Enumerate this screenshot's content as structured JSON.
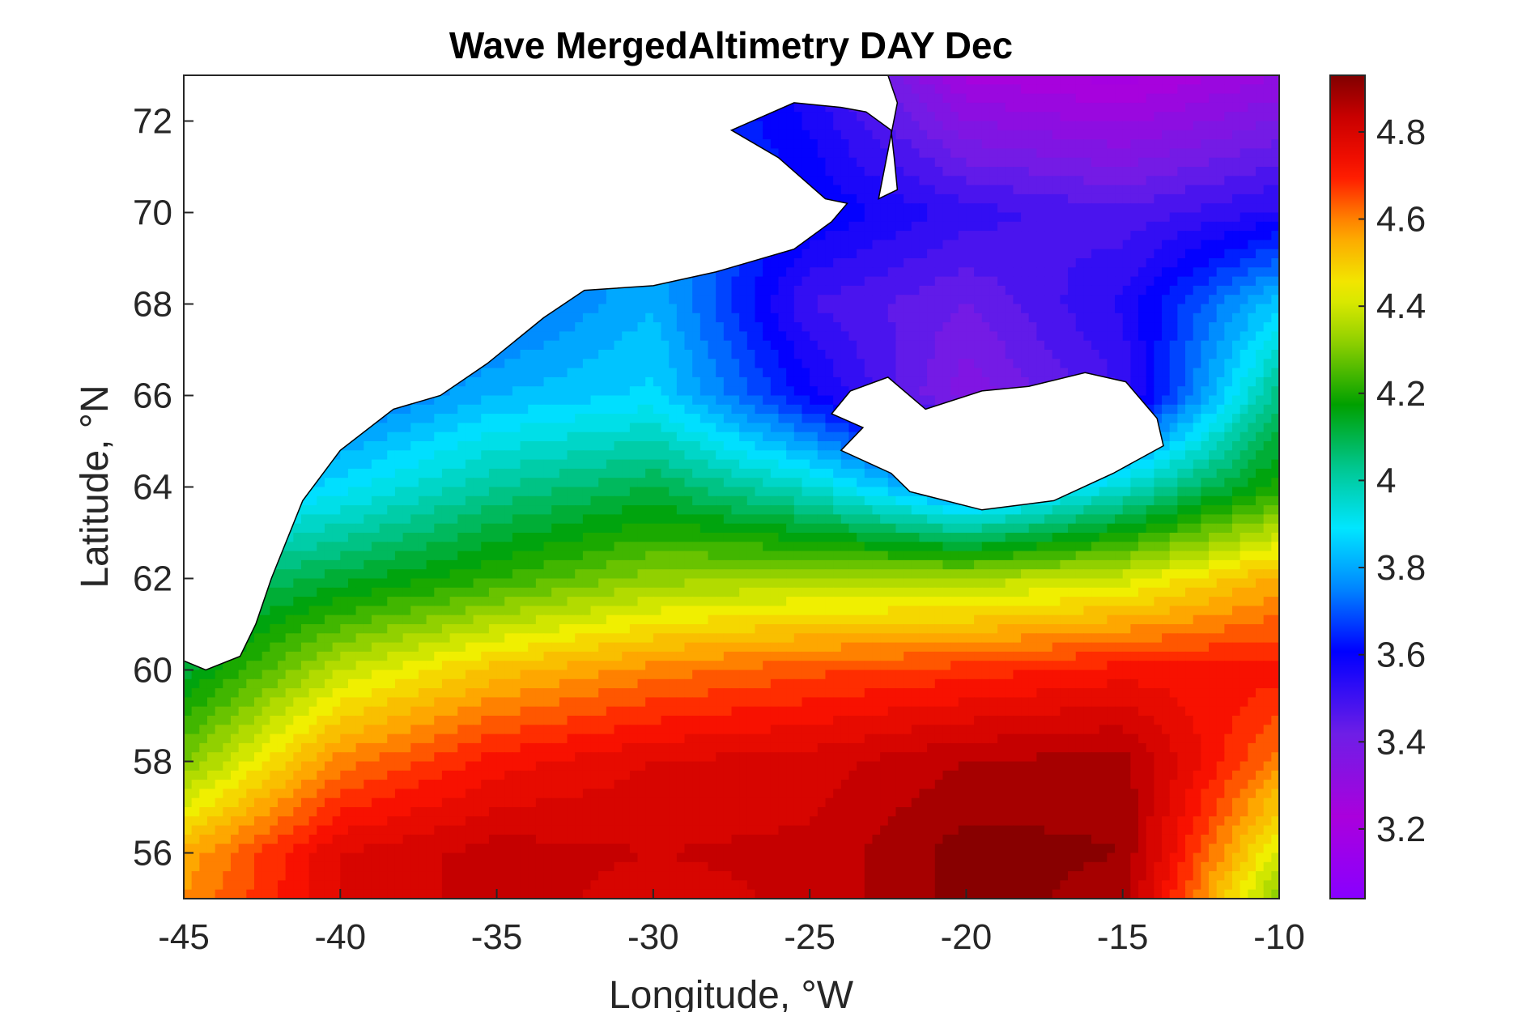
{
  "chart_data": {
    "type": "heatmap",
    "title": "Wave MergedAltimetry DAY Dec",
    "xlabel": "Longitude, °W",
    "ylabel": "Latitude, °N",
    "xlim": [
      -45,
      -10
    ],
    "ylim": [
      55,
      73
    ],
    "xticks": [
      -45,
      -40,
      -35,
      -30,
      -25,
      -20,
      -15,
      -10
    ],
    "yticks": [
      56,
      58,
      60,
      62,
      64,
      66,
      68,
      70,
      72
    ],
    "colorbar": {
      "range": [
        3.04,
        4.93
      ],
      "ticks": [
        3.2,
        3.4,
        3.6,
        3.8,
        4,
        4.2,
        4.4,
        4.6,
        4.8
      ],
      "colormap": "rainbow"
    },
    "grid": false,
    "contour_field": {
      "description_units": "wave height",
      "lon": [
        -45,
        -40,
        -35,
        -30,
        -25,
        -20,
        -15,
        -10
      ],
      "lat": [
        73,
        70,
        68,
        66,
        64,
        62,
        60,
        58,
        56,
        55
      ],
      "values": [
        [
          3.7,
          3.7,
          3.75,
          3.7,
          3.55,
          3.25,
          3.2,
          3.3
        ],
        [
          3.65,
          3.65,
          3.72,
          3.75,
          3.62,
          3.52,
          3.47,
          3.55
        ],
        [
          3.6,
          3.62,
          3.7,
          3.82,
          3.5,
          3.42,
          3.55,
          3.85
        ],
        [
          3.62,
          3.7,
          3.82,
          3.87,
          3.6,
          3.35,
          3.5,
          4.05
        ],
        [
          3.78,
          3.88,
          4.02,
          4.1,
          3.95,
          3.72,
          3.95,
          4.2
        ],
        [
          4.02,
          4.12,
          4.22,
          4.32,
          4.35,
          4.35,
          4.4,
          4.55
        ],
        [
          4.12,
          4.38,
          4.52,
          4.6,
          4.65,
          4.68,
          4.72,
          4.72
        ],
        [
          4.3,
          4.6,
          4.72,
          4.78,
          4.8,
          4.86,
          4.88,
          4.6
        ],
        [
          4.55,
          4.78,
          4.84,
          4.82,
          4.83,
          4.92,
          4.9,
          4.4
        ],
        [
          4.58,
          4.78,
          4.84,
          4.8,
          4.83,
          4.92,
          4.88,
          4.3
        ]
      ]
    },
    "land_masks": {
      "greenland": [
        [
          -45,
          73
        ],
        [
          -45,
          60.2
        ],
        [
          -44.3,
          60
        ],
        [
          -43.2,
          60.3
        ],
        [
          -42.7,
          61
        ],
        [
          -42.2,
          62
        ],
        [
          -41.2,
          63.7
        ],
        [
          -40,
          64.8
        ],
        [
          -38.3,
          65.7
        ],
        [
          -36.8,
          66
        ],
        [
          -35.3,
          66.7
        ],
        [
          -33.5,
          67.7
        ],
        [
          -32.2,
          68.3
        ],
        [
          -30,
          68.4
        ],
        [
          -28,
          68.7
        ],
        [
          -25.5,
          69.2
        ],
        [
          -24.3,
          69.8
        ],
        [
          -23.8,
          70.2
        ],
        [
          -24.5,
          70.3
        ],
        [
          -26,
          71.2
        ],
        [
          -27.5,
          71.8
        ],
        [
          -25.5,
          72.4
        ],
        [
          -24,
          72.3
        ],
        [
          -23.2,
          72.2
        ],
        [
          -22.4,
          71.8
        ],
        [
          -22.3,
          71.2
        ],
        [
          -22.2,
          70.5
        ],
        [
          -22.8,
          70.3
        ],
        [
          -22.2,
          72.4
        ],
        [
          -22.5,
          73
        ]
      ],
      "iceland": [
        [
          -24.3,
          65.6
        ],
        [
          -23.3,
          65.3
        ],
        [
          -24,
          64.8
        ],
        [
          -22.4,
          64.3
        ],
        [
          -21.8,
          63.9
        ],
        [
          -19.5,
          63.5
        ],
        [
          -17.2,
          63.7
        ],
        [
          -15.3,
          64.3
        ],
        [
          -13.7,
          64.9
        ],
        [
          -13.9,
          65.5
        ],
        [
          -14.9,
          66.3
        ],
        [
          -16.2,
          66.5
        ],
        [
          -18,
          66.2
        ],
        [
          -19.5,
          66.1
        ],
        [
          -21.3,
          65.7
        ],
        [
          -22.5,
          66.4
        ],
        [
          -23.7,
          66.1
        ],
        [
          -24.3,
          65.6
        ]
      ]
    }
  }
}
